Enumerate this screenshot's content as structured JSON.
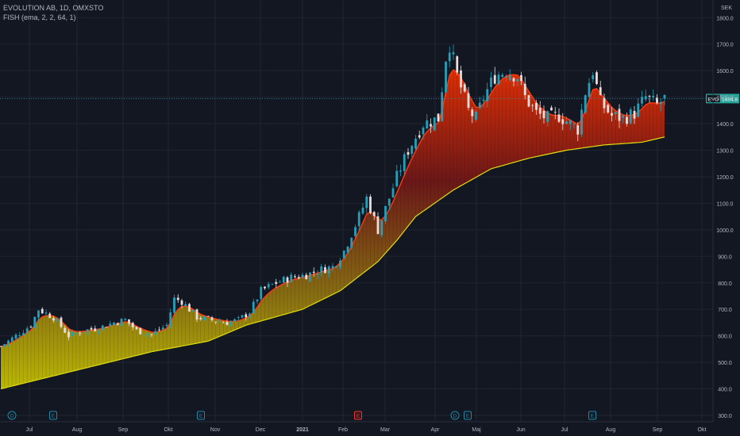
{
  "header": {
    "symbol_line": "EVOLUTION AB, 1D, OMXSTO",
    "indicator_line": "FISH (ema, 2, 2, 64, 1)"
  },
  "price_axis": {
    "currency": "SEK",
    "current_label": "EVO",
    "current_value": "1494.8"
  },
  "colors": {
    "background": "#131722",
    "grid": "#1f2430",
    "candle_up": "#26a0b8",
    "candle_down": "#e8dede",
    "ribbon_top": "#ff2a00",
    "ribbon_mid": "#8a1a14",
    "ribbon_bottom": "#d6d600",
    "event_marker": "#1e88a8",
    "earnings_marker_red": "#e53935",
    "price_line": "#2a9bb8"
  },
  "chart_data": {
    "type": "candlestick",
    "title": "EVOLUTION AB, 1D, OMXSTO",
    "ylabel": "SEK",
    "ylim": [
      280,
      1830
    ],
    "y_ticks": [
      "1800.0",
      "1700.0",
      "1600.0",
      "1500.0",
      "1400.0",
      "1300.0",
      "1200.0",
      "1100.0",
      "1000.0",
      "900.0",
      "800.0",
      "700.0",
      "600.0",
      "500.0",
      "400.0",
      "300.0"
    ],
    "x_ticks": [
      "Jul",
      "Aug",
      "Sep",
      "Okt",
      "Nov",
      "Dec",
      "2021",
      "Feb",
      "Mar",
      "Apr",
      "Maj",
      "Jun",
      "Jul",
      "Aug",
      "Sep",
      "Okt"
    ],
    "grid": true,
    "close_series": [
      [
        0,
        560
      ],
      [
        4,
        600
      ],
      [
        8,
        640
      ],
      [
        10,
        700
      ],
      [
        14,
        670
      ],
      [
        18,
        600
      ],
      [
        22,
        620
      ],
      [
        26,
        630
      ],
      [
        30,
        650
      ],
      [
        33,
        660
      ],
      [
        36,
        620
      ],
      [
        40,
        605
      ],
      [
        44,
        640
      ],
      [
        46,
        740
      ],
      [
        48,
        730
      ],
      [
        52,
        670
      ],
      [
        56,
        660
      ],
      [
        60,
        650
      ],
      [
        63,
        660
      ],
      [
        66,
        690
      ],
      [
        69,
        770
      ],
      [
        73,
        800
      ],
      [
        77,
        820
      ],
      [
        81,
        830
      ],
      [
        85,
        850
      ],
      [
        88,
        860
      ],
      [
        91,
        920
      ],
      [
        95,
        1050
      ],
      [
        97,
        1120
      ],
      [
        100,
        1000
      ],
      [
        102,
        1080
      ],
      [
        105,
        1200
      ],
      [
        108,
        1300
      ],
      [
        112,
        1400
      ],
      [
        116,
        1420
      ],
      [
        118,
        1650
      ],
      [
        119,
        1700
      ],
      [
        121,
        1580
      ],
      [
        124,
        1450
      ],
      [
        126,
        1420
      ],
      [
        128,
        1500
      ],
      [
        131,
        1580
      ],
      [
        134,
        1600
      ],
      [
        137,
        1580
      ],
      [
        139,
        1500
      ],
      [
        142,
        1440
      ],
      [
        145,
        1420
      ],
      [
        148,
        1430
      ],
      [
        151,
        1400
      ],
      [
        153,
        1380
      ],
      [
        155,
        1520
      ],
      [
        157,
        1600
      ],
      [
        159,
        1480
      ],
      [
        162,
        1430
      ],
      [
        165,
        1420
      ],
      [
        168,
        1440
      ],
      [
        171,
        1500
      ],
      [
        174,
        1470
      ],
      [
        176,
        1494.8
      ]
    ],
    "ribbon_lower_series": [
      [
        0,
        400
      ],
      [
        20,
        470
      ],
      [
        40,
        540
      ],
      [
        55,
        580
      ],
      [
        65,
        640
      ],
      [
        80,
        700
      ],
      [
        90,
        770
      ],
      [
        100,
        880
      ],
      [
        105,
        960
      ],
      [
        110,
        1050
      ],
      [
        115,
        1100
      ],
      [
        120,
        1150
      ],
      [
        130,
        1230
      ],
      [
        140,
        1270
      ],
      [
        150,
        1300
      ],
      [
        160,
        1320
      ],
      [
        170,
        1330
      ],
      [
        176,
        1350
      ]
    ],
    "event_markers": [
      {
        "x": 3,
        "label": "D"
      },
      {
        "x": 14,
        "label": "E"
      },
      {
        "x": 53,
        "label": "E"
      },
      {
        "x": 94,
        "label": "E"
      },
      {
        "x": 120,
        "label": "D"
      },
      {
        "x": 123,
        "label": "E"
      },
      {
        "x": 156,
        "label": "E"
      }
    ]
  }
}
